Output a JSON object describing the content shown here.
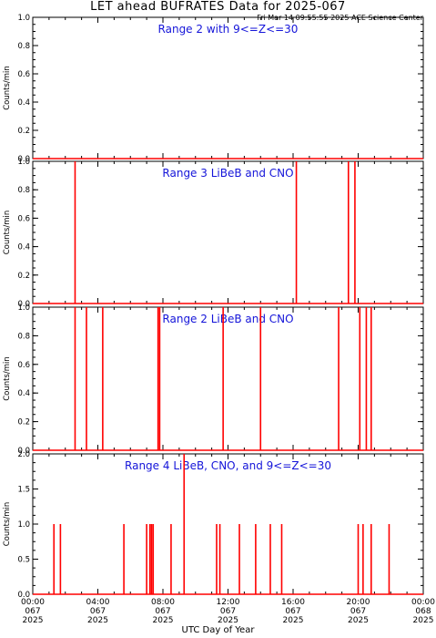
{
  "page": {
    "title": "LET ahead BUFRATES Data for 2025-067",
    "timestamp": "Fri Mar 14 09:55:55 2025 ACE Science Center",
    "xlabel": "UTC Day of Year"
  },
  "chart_data": [
    {
      "type": "line",
      "title": "Range 2 with 9<=Z<=30",
      "ylabel": "Counts/min",
      "ylim": [
        0,
        1
      ],
      "yticks": [
        "0.0",
        "0.2",
        "0.4",
        "0.6",
        "0.8",
        "1.0"
      ],
      "xlim": [
        0,
        24
      ],
      "series": [
        {
          "color": "#ff0000",
          "spikes": []
        }
      ]
    },
    {
      "type": "line",
      "title": "Range 3 LiBeB and CNO",
      "ylabel": "Counts/min",
      "ylim": [
        0,
        1
      ],
      "yticks": [
        "0.0",
        "0.2",
        "0.4",
        "0.6",
        "0.8",
        "1.0"
      ],
      "xlim": [
        0,
        24
      ],
      "series": [
        {
          "color": "#ff0000",
          "spikes": [
            {
              "x": 2.6,
              "y": 1
            },
            {
              "x": 16.2,
              "y": 1
            },
            {
              "x": 19.4,
              "y": 1
            },
            {
              "x": 19.8,
              "y": 1
            }
          ]
        }
      ]
    },
    {
      "type": "line",
      "title": "Range 2 LiBeB and CNO",
      "ylabel": "Counts/min",
      "ylim": [
        0,
        1
      ],
      "yticks": [
        "0.0",
        "0.2",
        "0.4",
        "0.6",
        "0.8",
        "1.0"
      ],
      "xlim": [
        0,
        24
      ],
      "series": [
        {
          "color": "#ff0000",
          "spikes": [
            {
              "x": 2.6,
              "y": 1
            },
            {
              "x": 3.3,
              "y": 1
            },
            {
              "x": 4.3,
              "y": 1
            },
            {
              "x": 7.7,
              "y": 1
            },
            {
              "x": 7.8,
              "y": 1
            },
            {
              "x": 11.7,
              "y": 1
            },
            {
              "x": 14.0,
              "y": 1
            },
            {
              "x": 18.8,
              "y": 1
            },
            {
              "x": 20.1,
              "y": 1
            },
            {
              "x": 20.5,
              "y": 1
            },
            {
              "x": 20.8,
              "y": 1
            }
          ]
        }
      ]
    },
    {
      "type": "line",
      "title": "Range 4 LiBeB, CNO, and 9<=Z<=30",
      "ylabel": "Counts/min",
      "ylim": [
        0,
        2
      ],
      "yticks": [
        "0.0",
        "0.5",
        "1.0",
        "1.5",
        "2.0"
      ],
      "xlim": [
        0,
        24
      ],
      "xticks": [
        {
          "time": "00:00",
          "doy": "067",
          "year": "2025"
        },
        {
          "time": "04:00",
          "doy": "067",
          "year": "2025"
        },
        {
          "time": "08:00",
          "doy": "067",
          "year": "2025"
        },
        {
          "time": "12:00",
          "doy": "067",
          "year": "2025"
        },
        {
          "time": "16:00",
          "doy": "067",
          "year": "2025"
        },
        {
          "time": "20:00",
          "doy": "067",
          "year": "2025"
        },
        {
          "time": "00:00",
          "doy": "068",
          "year": "2025"
        }
      ],
      "series": [
        {
          "color": "#ff0000",
          "spikes": [
            {
              "x": 1.3,
              "y": 1
            },
            {
              "x": 1.7,
              "y": 1
            },
            {
              "x": 5.6,
              "y": 1
            },
            {
              "x": 7.0,
              "y": 1
            },
            {
              "x": 7.2,
              "y": 1
            },
            {
              "x": 7.3,
              "y": 1
            },
            {
              "x": 7.4,
              "y": 1
            },
            {
              "x": 8.5,
              "y": 1
            },
            {
              "x": 9.3,
              "y": 2
            },
            {
              "x": 11.3,
              "y": 1
            },
            {
              "x": 11.5,
              "y": 1
            },
            {
              "x": 12.7,
              "y": 1
            },
            {
              "x": 13.7,
              "y": 1
            },
            {
              "x": 14.6,
              "y": 1
            },
            {
              "x": 15.3,
              "y": 1
            },
            {
              "x": 20.0,
              "y": 1
            },
            {
              "x": 20.3,
              "y": 1
            },
            {
              "x": 20.8,
              "y": 1
            },
            {
              "x": 21.9,
              "y": 1
            }
          ]
        }
      ]
    }
  ]
}
